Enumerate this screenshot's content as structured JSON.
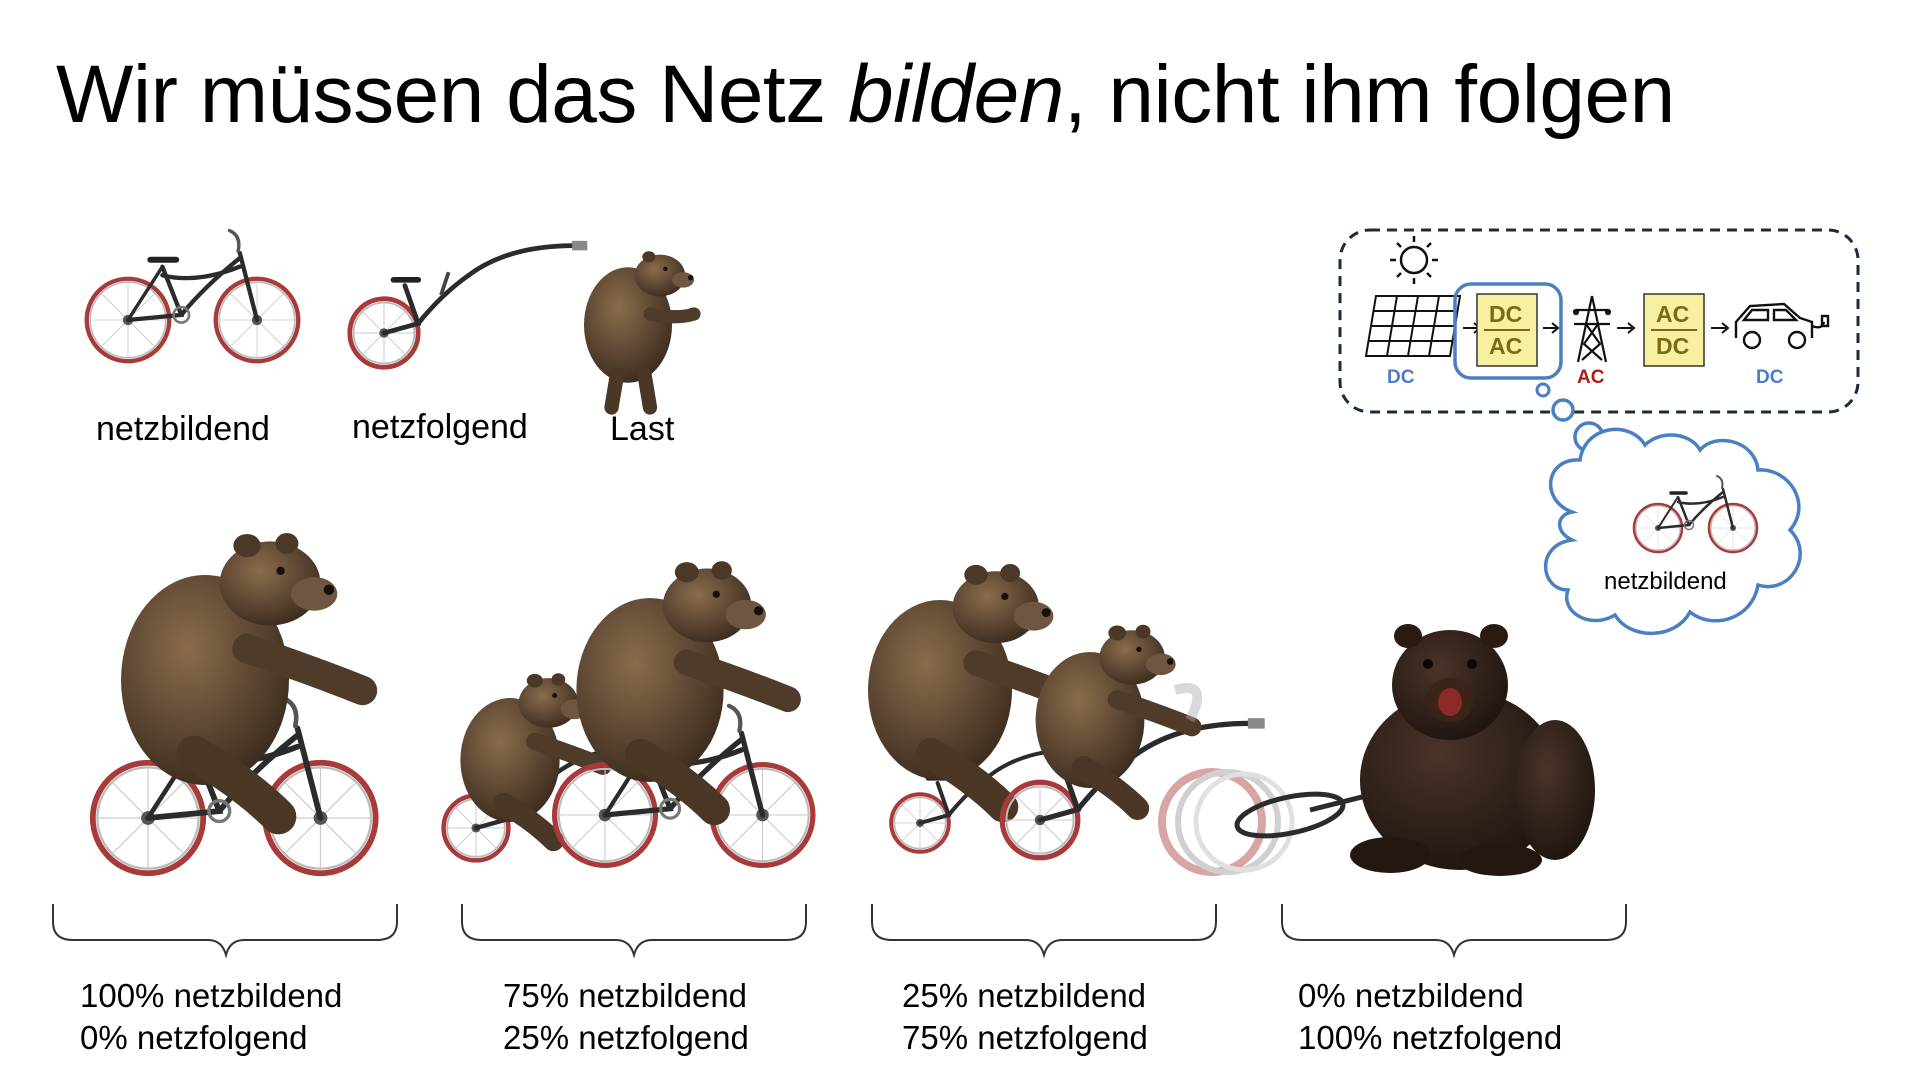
{
  "title": {
    "before": "Wir müssen das Netz ",
    "emphasis": "bilden",
    "after": ", nicht ihm folgen"
  },
  "legend": [
    {
      "label": "netzbildend",
      "icon": "bicycle-icon"
    },
    {
      "label": "netzfolgend",
      "icon": "trailer-bike-icon"
    },
    {
      "label": "Last",
      "icon": "bear-icon"
    }
  ],
  "scenarios": [
    {
      "line1": "100% netzbildend",
      "line2": "0% netzfolgend"
    },
    {
      "line1": "75% netzbildend",
      "line2": "25% netzfolgend"
    },
    {
      "line1": "25% netzbildend",
      "line2": "75% netzfolgend"
    },
    {
      "line1": "0% netzbildend",
      "line2": "100% netzfolgend"
    }
  ],
  "diagram": {
    "inverter_label": {
      "top": "DC",
      "bottom": "AC"
    },
    "rectifier_label": {
      "top": "AC",
      "bottom": "DC"
    },
    "currents": {
      "solar": "DC",
      "grid": "AC",
      "car": "DC"
    },
    "thought_label": "netzbildend"
  },
  "colors": {
    "dc_blue": "#4a7fc1",
    "ac_red": "#b01a1a",
    "box_yellow": "#f6f0a0",
    "box_text": "#7a6a14",
    "bear_brown": "#5b4531",
    "bike_frame": "#2b2b2b",
    "tire_red": "#a83a3a"
  }
}
